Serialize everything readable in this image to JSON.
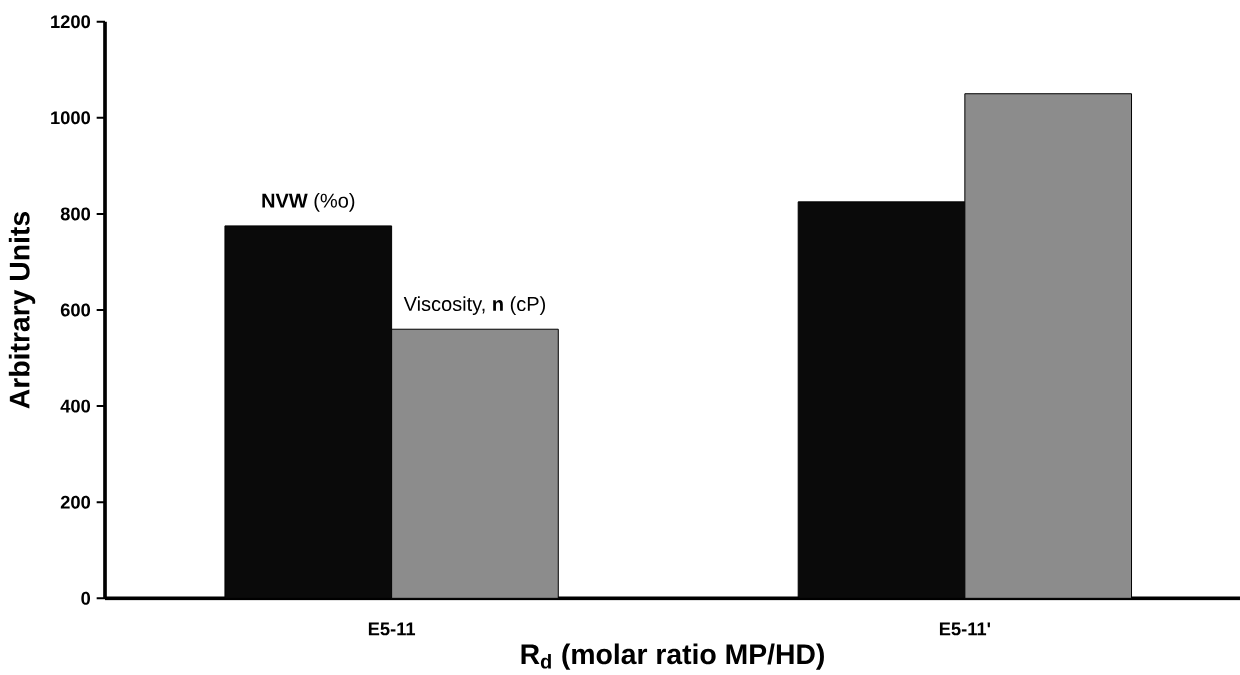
{
  "chart_data": {
    "type": "bar",
    "xlabel": "R$_{d}$ (molar ratio MP/HD)",
    "ylabel": "Arbitrary Units",
    "categories": [
      "E5-11",
      "E5-11'"
    ],
    "series": [
      {
        "name": "**NVW** (%o)",
        "color": "#0a0a0a",
        "values": [
          775,
          825
        ]
      },
      {
        "name": "Viscosity, **n** (cP)",
        "color": "#8c8c8c",
        "values": [
          560,
          1050
        ]
      }
    ],
    "ylim": [
      0,
      1200
    ],
    "yticks": [
      0,
      200,
      400,
      600,
      800,
      1000,
      1200
    ],
    "grid": false
  }
}
